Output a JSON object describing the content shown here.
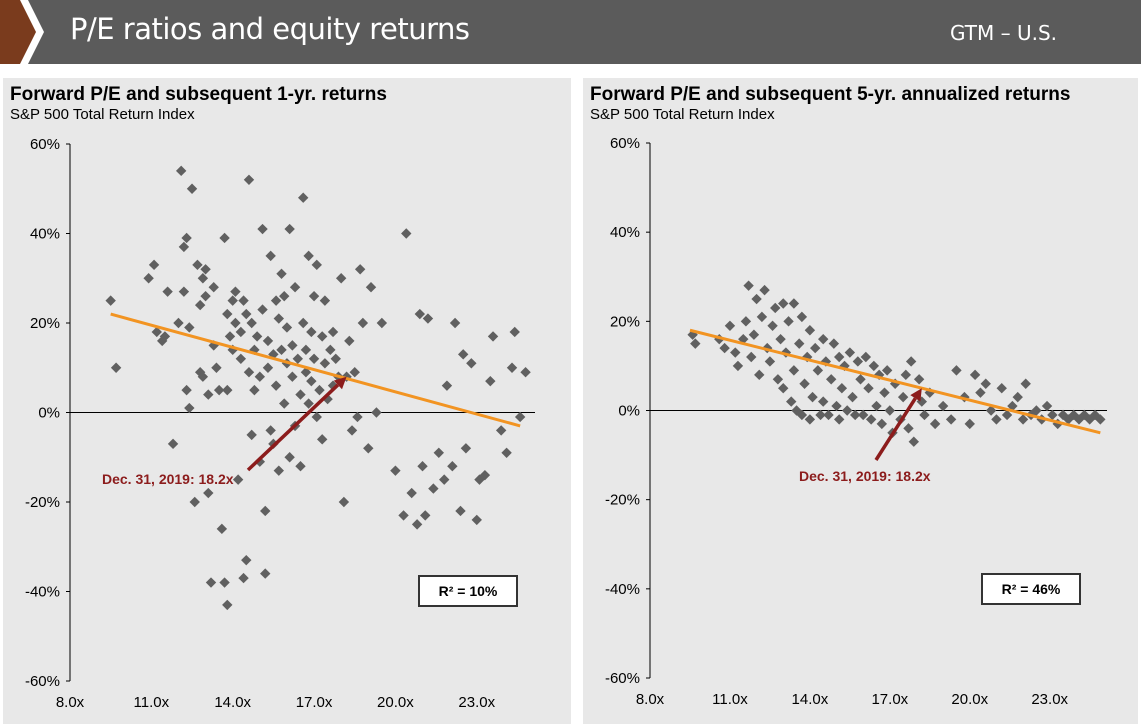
{
  "header": {
    "title": "P/E ratios and equity returns",
    "tag": "GTM – U.S."
  },
  "colors": {
    "header_bg": "#5b5b5b",
    "accent": "#7a3b1d",
    "points": "#606060",
    "trend": "#f29422",
    "arrow": "#8c1c1c",
    "panel_bg": "#e8e8e8"
  },
  "chart_data": [
    {
      "type": "scatter",
      "title": "Forward P/E and subsequent 1-yr. returns",
      "subtitle": "S&P 500 Total Return Index",
      "x_ticks": [
        "8.0x",
        "11.0x",
        "14.0x",
        "17.0x",
        "20.0x",
        "23.0x"
      ],
      "y_ticks": [
        "60%",
        "40%",
        "20%",
        "0%",
        "-20%",
        "-40%",
        "-60%"
      ],
      "xlim": [
        8,
        25
      ],
      "ylim": [
        -60,
        60
      ],
      "trendline": {
        "x": [
          9.5,
          24.6
        ],
        "y": [
          22,
          -3
        ]
      },
      "annotation": {
        "text": "Dec. 31, 2019: 18.2x",
        "target": [
          18.2,
          8
        ]
      },
      "r_squared": "R² = 10%",
      "points": [
        [
          9.5,
          25
        ],
        [
          9.7,
          10
        ],
        [
          10.9,
          30
        ],
        [
          11.1,
          33
        ],
        [
          11.2,
          18
        ],
        [
          11.4,
          16
        ],
        [
          11.5,
          17
        ],
        [
          11.6,
          27
        ],
        [
          11.8,
          -7
        ],
        [
          12.0,
          20
        ],
        [
          12.1,
          54
        ],
        [
          12.2,
          37
        ],
        [
          12.2,
          27
        ],
        [
          12.3,
          39
        ],
        [
          12.3,
          5
        ],
        [
          12.4,
          19
        ],
        [
          12.4,
          1
        ],
        [
          12.5,
          50
        ],
        [
          12.6,
          -20
        ],
        [
          12.7,
          33
        ],
        [
          12.8,
          9
        ],
        [
          12.8,
          24
        ],
        [
          12.9,
          8
        ],
        [
          12.9,
          30
        ],
        [
          13.0,
          32
        ],
        [
          13.0,
          26
        ],
        [
          13.1,
          4
        ],
        [
          13.1,
          -18
        ],
        [
          13.2,
          -38
        ],
        [
          13.3,
          28
        ],
        [
          13.3,
          15
        ],
        [
          13.4,
          10
        ],
        [
          13.5,
          5
        ],
        [
          13.6,
          -26
        ],
        [
          13.7,
          -38
        ],
        [
          13.7,
          39
        ],
        [
          13.8,
          22
        ],
        [
          13.8,
          5
        ],
        [
          13.8,
          -43
        ],
        [
          13.9,
          17
        ],
        [
          14.0,
          25
        ],
        [
          14.0,
          14
        ],
        [
          14.1,
          27
        ],
        [
          14.1,
          20
        ],
        [
          14.2,
          -15
        ],
        [
          14.3,
          18
        ],
        [
          14.3,
          12
        ],
        [
          14.4,
          -37
        ],
        [
          14.4,
          25
        ],
        [
          14.5,
          -33
        ],
        [
          14.5,
          22
        ],
        [
          14.6,
          52
        ],
        [
          14.6,
          9
        ],
        [
          14.7,
          20
        ],
        [
          14.7,
          -5
        ],
        [
          14.8,
          14
        ],
        [
          14.8,
          5
        ],
        [
          14.9,
          17
        ],
        [
          15.0,
          -11
        ],
        [
          15.0,
          8
        ],
        [
          15.1,
          23
        ],
        [
          15.1,
          41
        ],
        [
          15.2,
          -36
        ],
        [
          15.2,
          -22
        ],
        [
          15.3,
          16
        ],
        [
          15.3,
          10
        ],
        [
          15.4,
          -4
        ],
        [
          15.4,
          35
        ],
        [
          15.5,
          13
        ],
        [
          15.5,
          -7
        ],
        [
          15.6,
          25
        ],
        [
          15.6,
          6
        ],
        [
          15.7,
          21
        ],
        [
          15.7,
          -13
        ],
        [
          15.8,
          31
        ],
        [
          15.8,
          14
        ],
        [
          15.9,
          2
        ],
        [
          15.9,
          26
        ],
        [
          16.0,
          19
        ],
        [
          16.0,
          11
        ],
        [
          16.1,
          41
        ],
        [
          16.1,
          -10
        ],
        [
          16.2,
          15
        ],
        [
          16.2,
          8
        ],
        [
          16.3,
          -3
        ],
        [
          16.3,
          28
        ],
        [
          16.4,
          12
        ],
        [
          16.5,
          4
        ],
        [
          16.5,
          -12
        ],
        [
          16.6,
          20
        ],
        [
          16.6,
          48
        ],
        [
          16.7,
          9
        ],
        [
          16.7,
          14
        ],
        [
          16.8,
          35
        ],
        [
          16.8,
          2
        ],
        [
          16.9,
          18
        ],
        [
          16.9,
          7
        ],
        [
          17.0,
          26
        ],
        [
          17.0,
          12
        ],
        [
          17.1,
          -1
        ],
        [
          17.1,
          33
        ],
        [
          17.2,
          5
        ],
        [
          17.3,
          17
        ],
        [
          17.3,
          -6
        ],
        [
          17.4,
          11
        ],
        [
          17.4,
          25
        ],
        [
          17.5,
          3
        ],
        [
          17.6,
          14
        ],
        [
          17.7,
          18
        ],
        [
          17.7,
          6
        ],
        [
          17.8,
          12
        ],
        [
          17.9,
          8
        ],
        [
          18.0,
          30
        ],
        [
          18.1,
          -20
        ],
        [
          18.2,
          8
        ],
        [
          18.3,
          16
        ],
        [
          18.4,
          -4
        ],
        [
          18.5,
          9
        ],
        [
          18.6,
          -1
        ],
        [
          18.7,
          32
        ],
        [
          18.8,
          20
        ],
        [
          19.0,
          -8
        ],
        [
          19.1,
          28
        ],
        [
          19.3,
          0
        ],
        [
          19.5,
          20
        ],
        [
          20.0,
          -13
        ],
        [
          20.3,
          -23
        ],
        [
          20.4,
          40
        ],
        [
          20.6,
          -18
        ],
        [
          20.8,
          -25
        ],
        [
          20.9,
          22
        ],
        [
          21.0,
          -12
        ],
        [
          21.1,
          -23
        ],
        [
          21.2,
          21
        ],
        [
          21.4,
          -17
        ],
        [
          21.6,
          -9
        ],
        [
          21.8,
          -15
        ],
        [
          21.9,
          6
        ],
        [
          22.1,
          -12
        ],
        [
          22.2,
          20
        ],
        [
          22.4,
          -22
        ],
        [
          22.5,
          13
        ],
        [
          22.6,
          -8
        ],
        [
          22.8,
          11
        ],
        [
          23.0,
          -24
        ],
        [
          23.1,
          -15
        ],
        [
          23.3,
          -14
        ],
        [
          23.5,
          7
        ],
        [
          23.6,
          17
        ],
        [
          23.9,
          -4
        ],
        [
          24.1,
          -9
        ],
        [
          24.3,
          10
        ],
        [
          24.4,
          18
        ],
        [
          24.6,
          -1
        ],
        [
          24.8,
          9
        ]
      ]
    },
    {
      "type": "scatter",
      "title": "Forward P/E and subsequent 5-yr. annualized returns",
      "subtitle": "S&P 500 Total Return Index",
      "x_ticks": [
        "8.0x",
        "11.0x",
        "14.0x",
        "17.0x",
        "20.0x",
        "23.0x"
      ],
      "y_ticks": [
        "60%",
        "40%",
        "20%",
        "0%",
        "-20%",
        "-40%",
        "-60%"
      ],
      "xlim": [
        8,
        25
      ],
      "ylim": [
        -60,
        60
      ],
      "trendline": {
        "x": [
          9.5,
          24.9
        ],
        "y": [
          18,
          -5
        ]
      },
      "annotation": {
        "text": "Dec. 31, 2019: 18.2x",
        "target": [
          18.2,
          5
        ]
      },
      "r_squared": "R² = 46%",
      "points": [
        [
          9.6,
          17
        ],
        [
          9.7,
          15
        ],
        [
          10.6,
          16
        ],
        [
          10.8,
          14
        ],
        [
          11.0,
          19
        ],
        [
          11.2,
          13
        ],
        [
          11.3,
          10
        ],
        [
          11.5,
          16
        ],
        [
          11.6,
          20
        ],
        [
          11.7,
          28
        ],
        [
          11.8,
          12
        ],
        [
          11.9,
          17
        ],
        [
          12.0,
          25
        ],
        [
          12.1,
          8
        ],
        [
          12.2,
          21
        ],
        [
          12.3,
          27
        ],
        [
          12.4,
          14
        ],
        [
          12.5,
          11
        ],
        [
          12.6,
          19
        ],
        [
          12.7,
          23
        ],
        [
          12.8,
          7
        ],
        [
          12.9,
          16
        ],
        [
          13.0,
          24
        ],
        [
          13.0,
          5
        ],
        [
          13.1,
          13
        ],
        [
          13.2,
          20
        ],
        [
          13.3,
          2
        ],
        [
          13.4,
          24
        ],
        [
          13.4,
          9
        ],
        [
          13.5,
          0
        ],
        [
          13.6,
          15
        ],
        [
          13.7,
          21
        ],
        [
          13.7,
          -1
        ],
        [
          13.8,
          6
        ],
        [
          13.9,
          12
        ],
        [
          14.0,
          18
        ],
        [
          14.0,
          -2
        ],
        [
          14.1,
          3
        ],
        [
          14.2,
          14
        ],
        [
          14.3,
          9
        ],
        [
          14.4,
          -1
        ],
        [
          14.5,
          16
        ],
        [
          14.5,
          2
        ],
        [
          14.6,
          11
        ],
        [
          14.7,
          -1
        ],
        [
          14.8,
          7
        ],
        [
          14.9,
          15
        ],
        [
          15.0,
          1
        ],
        [
          15.1,
          12
        ],
        [
          15.1,
          -2
        ],
        [
          15.2,
          5
        ],
        [
          15.3,
          10
        ],
        [
          15.4,
          0
        ],
        [
          15.5,
          13
        ],
        [
          15.6,
          3
        ],
        [
          15.7,
          -1
        ],
        [
          15.8,
          11
        ],
        [
          15.9,
          7
        ],
        [
          16.0,
          -1
        ],
        [
          16.1,
          12
        ],
        [
          16.2,
          5
        ],
        [
          16.3,
          -2
        ],
        [
          16.4,
          10
        ],
        [
          16.5,
          1
        ],
        [
          16.6,
          8
        ],
        [
          16.7,
          -3
        ],
        [
          16.8,
          4
        ],
        [
          16.9,
          9
        ],
        [
          17.0,
          0
        ],
        [
          17.1,
          -5
        ],
        [
          17.2,
          6
        ],
        [
          17.4,
          -2
        ],
        [
          17.5,
          3
        ],
        [
          17.6,
          8
        ],
        [
          17.7,
          -4
        ],
        [
          17.8,
          11
        ],
        [
          17.9,
          -7
        ],
        [
          18.1,
          7
        ],
        [
          18.2,
          2
        ],
        [
          18.3,
          -1
        ],
        [
          18.5,
          4
        ],
        [
          18.7,
          -3
        ],
        [
          19.0,
          1
        ],
        [
          19.3,
          -2
        ],
        [
          19.5,
          9
        ],
        [
          19.8,
          3
        ],
        [
          20.0,
          -3
        ],
        [
          20.2,
          8
        ],
        [
          20.4,
          4
        ],
        [
          20.6,
          6
        ],
        [
          20.8,
          0
        ],
        [
          21.0,
          -2
        ],
        [
          21.2,
          5
        ],
        [
          21.4,
          -1
        ],
        [
          21.6,
          1
        ],
        [
          21.8,
          3
        ],
        [
          22.0,
          -2
        ],
        [
          22.1,
          6
        ],
        [
          22.3,
          -1
        ],
        [
          22.5,
          0
        ],
        [
          22.7,
          -2
        ],
        [
          22.9,
          1
        ],
        [
          23.1,
          -1
        ],
        [
          23.3,
          -3
        ],
        [
          23.5,
          -1
        ],
        [
          23.7,
          -2
        ],
        [
          23.9,
          -1
        ],
        [
          24.1,
          -2
        ],
        [
          24.3,
          -1
        ],
        [
          24.5,
          -2
        ],
        [
          24.7,
          -1
        ],
        [
          24.9,
          -2
        ]
      ]
    }
  ]
}
